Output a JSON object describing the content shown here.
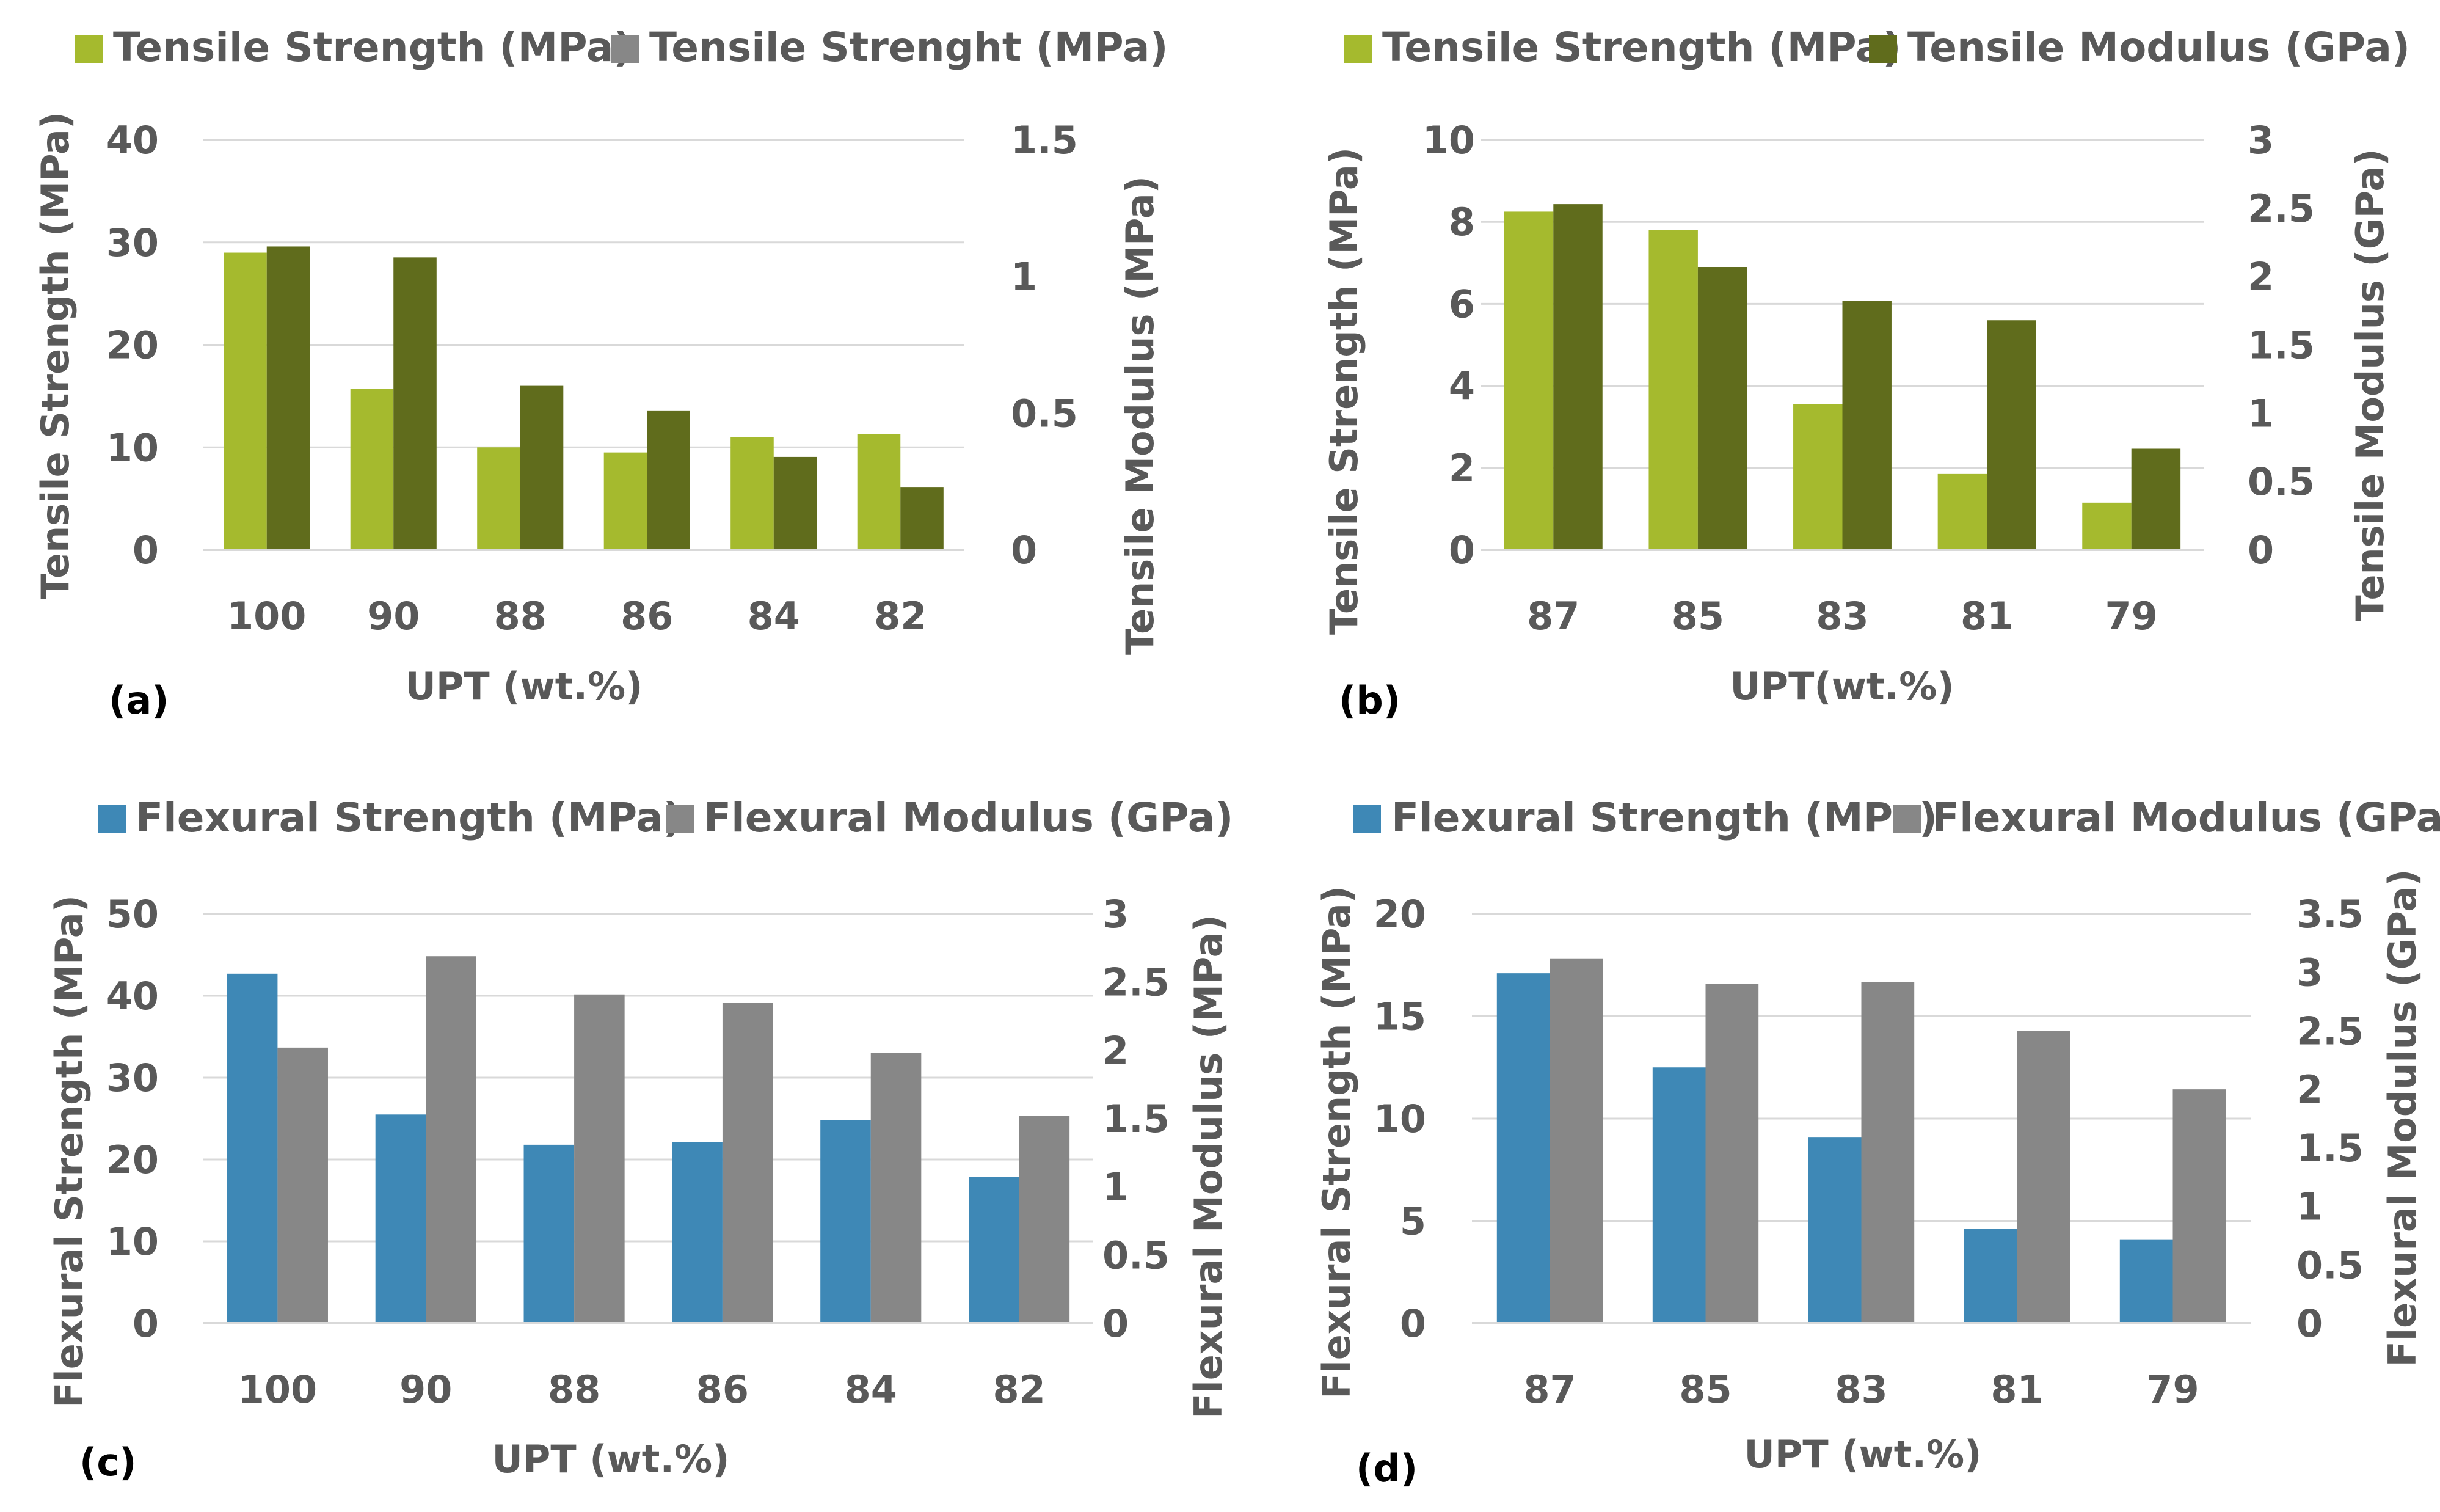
{
  "colors": {
    "tensile_strength": "#A5BA2E",
    "tensile_modulus": "#606C1C",
    "flexural_strength": "#3E88B6",
    "flexural_modulus": "#878787",
    "grid": "#D9D9D9",
    "text": "#595959"
  },
  "chart_data": [
    {
      "type": "bar",
      "panel_label": "(a)",
      "categories": [
        "100",
        "90",
        "88",
        "86",
        "84",
        "82"
      ],
      "xlabel": "UPT (wt.%)",
      "ylabel": "Tensile Strength (MPa)",
      "y2label": "Tensile Modulus (MPa)",
      "ylim": [
        0,
        40
      ],
      "yticks": [
        "0",
        "10",
        "20",
        "30",
        "40"
      ],
      "y2lim": [
        0,
        1.5
      ],
      "y2ticks": [
        "0",
        "0.5",
        "1",
        "1.5"
      ],
      "grid": true,
      "legend": "top",
      "series": [
        {
          "name": "Tensile Strength (MPa)",
          "axis": "left",
          "color_key": "tensile_strength",
          "values": [
            29,
            15.7,
            10,
            9.5,
            11,
            11.3
          ]
        },
        {
          "name": "Tensile Strenght (MPa)",
          "axis": "right",
          "color_key": "tensile_modulus",
          "legend_color_key": "flexural_modulus",
          "values": [
            1.11,
            1.07,
            0.6,
            0.51,
            0.34,
            0.23
          ]
        }
      ]
    },
    {
      "type": "bar",
      "panel_label": "(b)",
      "categories": [
        "87",
        "85",
        "83",
        "81",
        "79"
      ],
      "xlabel": "UPT(wt.%)",
      "ylabel": "Tensile Strength (MPa)",
      "y2label": "Tensile Modulus (GPa)",
      "ylim": [
        0,
        10
      ],
      "yticks": [
        "0",
        "2",
        "4",
        "6",
        "8",
        "10"
      ],
      "y2lim": [
        0,
        3
      ],
      "y2ticks": [
        "0",
        "0.5",
        "1",
        "1.5",
        "2",
        "2.5",
        "3"
      ],
      "grid": true,
      "legend": "top",
      "series": [
        {
          "name": "Tensile Strength (MPa)",
          "axis": "left",
          "color_key": "tensile_strength",
          "values": [
            8.25,
            7.8,
            3.55,
            1.85,
            1.15
          ]
        },
        {
          "name": "Tensile Modulus (GPa)",
          "axis": "right",
          "color_key": "tensile_modulus",
          "values": [
            2.53,
            2.07,
            1.82,
            1.68,
            0.74
          ]
        }
      ]
    },
    {
      "type": "bar",
      "panel_label": "(c)",
      "categories": [
        "100",
        "90",
        "88",
        "86",
        "84",
        "82"
      ],
      "xlabel": "UPT (wt.%)",
      "ylabel": "Flexural Strength (MPa)",
      "y2label": "Flexural Modulus (MPa)",
      "ylim": [
        0,
        50
      ],
      "yticks": [
        "0",
        "10",
        "20",
        "30",
        "40",
        "50"
      ],
      "y2lim": [
        0,
        3
      ],
      "y2ticks": [
        "0",
        "0.5",
        "1",
        "1.5",
        "2",
        "2.5",
        "3"
      ],
      "grid": true,
      "legend": "top",
      "series": [
        {
          "name": "Flexural Strength (MPa)",
          "axis": "left",
          "color_key": "flexural_strength",
          "values": [
            42.7,
            25.5,
            21.8,
            22.1,
            24.8,
            17.9
          ]
        },
        {
          "name": "Flexural Modulus (GPa)",
          "axis": "right",
          "color_key": "flexural_modulus",
          "values": [
            2.02,
            2.69,
            2.41,
            2.35,
            1.98,
            1.52
          ]
        }
      ]
    },
    {
      "type": "bar",
      "panel_label": "(d)",
      "categories": [
        "87",
        "85",
        "83",
        "81",
        "79"
      ],
      "xlabel": "UPT (wt.%)",
      "ylabel": "Flexural Strength (MPa)",
      "y2label": "Flexural Modulus (GPa)",
      "ylim": [
        0,
        20
      ],
      "yticks": [
        "0",
        "5",
        "10",
        "15",
        "20"
      ],
      "y2lim": [
        0,
        3.5
      ],
      "y2ticks": [
        "0",
        "0.5",
        "1",
        "1.5",
        "2",
        "2.5",
        "3",
        "3.5"
      ],
      "grid": true,
      "legend": "top",
      "series": [
        {
          "name": "Flexural Strength (MPa)",
          "axis": "left",
          "color_key": "flexural_strength",
          "values": [
            17.1,
            12.5,
            9.1,
            4.6,
            4.1
          ]
        },
        {
          "name": "Flexural Modulus (GPa)",
          "axis": "right",
          "color_key": "flexural_modulus",
          "values": [
            3.12,
            2.9,
            2.92,
            2.5,
            2
          ]
        }
      ]
    }
  ]
}
